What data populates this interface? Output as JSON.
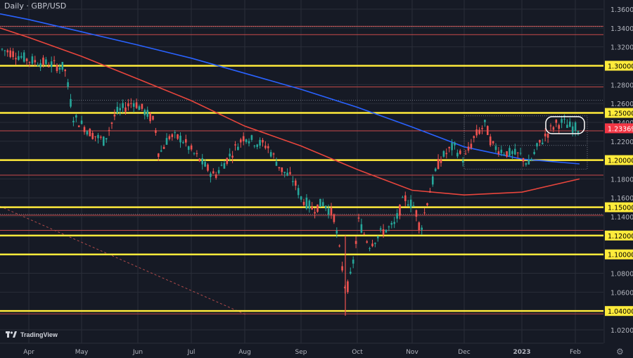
{
  "title": "Daily · GBP/USD",
  "brand": "TradingView",
  "settings_icon": "gear-icon",
  "colors": {
    "background": "#161a25",
    "grid": "#2a2e39",
    "up": "#26a69a",
    "down": "#ef5350",
    "yellow": "#ffeb3b",
    "redline": "#c94a4a",
    "ma_blue": "#2962ff",
    "ma_red": "#e8453c",
    "axis_text": "#b2b5be",
    "price_label_bg": "#f23645"
  },
  "chart_data": {
    "type": "candlestick",
    "title": "Daily · GBP/USD",
    "xlabel": "",
    "ylabel": "",
    "ylim": [
      1.01,
      1.365
    ],
    "x_tick_labels": [
      "Apr",
      "May",
      "Jun",
      "Jul",
      "Aug",
      "Sep",
      "Oct",
      "Nov",
      "Dec",
      "2023",
      "Feb"
    ],
    "y_tick_labels": [
      "1.36000",
      "1.34000",
      "1.32000",
      "1.30000",
      "1.28000",
      "1.26000",
      "1.25000",
      "1.24000",
      "1.22000",
      "1.20000",
      "1.18000",
      "1.16000",
      "1.15000",
      "1.14000",
      "1.12000",
      "1.10000",
      "1.08000",
      "1.06000",
      "1.04000",
      "1.02000"
    ],
    "current_price": "1.23369",
    "yellow_levels": [
      1.3,
      1.25,
      1.2,
      1.15,
      1.12,
      1.1,
      1.04
    ],
    "red_levels": [
      1.3418,
      1.333,
      1.2775,
      1.231,
      1.184,
      1.1415,
      1.1255,
      1.037
    ],
    "ma_200": [
      {
        "month": "Mar",
        "value": 1.355
      },
      {
        "month": "Apr",
        "value": 1.349
      },
      {
        "month": "May",
        "value": 1.336
      },
      {
        "month": "Jun",
        "value": 1.322
      },
      {
        "month": "Jul",
        "value": 1.308
      },
      {
        "month": "Aug",
        "value": 1.292
      },
      {
        "month": "Sep",
        "value": 1.275
      },
      {
        "month": "Oct",
        "value": 1.256
      },
      {
        "month": "Nov",
        "value": 1.235
      },
      {
        "month": "Dec",
        "value": 1.214
      },
      {
        "month": "Jan",
        "value": 1.201
      },
      {
        "month": "Feb",
        "value": 1.196
      }
    ],
    "ma_100": [
      {
        "month": "Mar",
        "value": 1.34
      },
      {
        "month": "Apr",
        "value": 1.33
      },
      {
        "month": "May",
        "value": 1.31
      },
      {
        "month": "Jun",
        "value": 1.286
      },
      {
        "month": "Jul",
        "value": 1.263
      },
      {
        "month": "Aug",
        "value": 1.236
      },
      {
        "month": "Sep",
        "value": 1.215
      },
      {
        "month": "Oct",
        "value": 1.19
      },
      {
        "month": "Nov",
        "value": 1.168
      },
      {
        "month": "Dec",
        "value": 1.163
      },
      {
        "month": "Jan",
        "value": 1.166
      },
      {
        "month": "Feb",
        "value": 1.18
      }
    ],
    "price_path": [
      {
        "month": "Mar",
        "close": 1.318
      },
      {
        "month": "Apr",
        "close": 1.306
      },
      {
        "month": "Apr-end",
        "close": 1.298
      },
      {
        "month": "May",
        "close": 1.24
      },
      {
        "month": "May-mid",
        "close": 1.222
      },
      {
        "month": "Jun",
        "close": 1.262
      },
      {
        "month": "Jun-mid",
        "close": 1.205
      },
      {
        "month": "Jul",
        "close": 1.21
      },
      {
        "month": "Jul-mid",
        "close": 1.183
      },
      {
        "month": "Aug",
        "close": 1.226
      },
      {
        "month": "Aug-mid",
        "close": 1.205
      },
      {
        "month": "Sep",
        "close": 1.16
      },
      {
        "month": "Sep-mid",
        "close": 1.147
      },
      {
        "month": "Sep-end",
        "close": 1.06
      },
      {
        "month": "Oct",
        "close": 1.13
      },
      {
        "month": "Oct-mid",
        "close": 1.115
      },
      {
        "month": "Nov",
        "close": 1.16
      },
      {
        "month": "Nov-mid",
        "close": 1.12
      },
      {
        "month": "Dec",
        "close": 1.215
      },
      {
        "month": "Dec-mid",
        "close": 1.24
      },
      {
        "month": "Jan",
        "close": 1.205
      },
      {
        "month": "Jan-mid",
        "close": 1.223
      },
      {
        "month": "Feb",
        "close": 1.234
      }
    ],
    "annotation": "range highlighted near 1.24000 (late Jan)"
  }
}
